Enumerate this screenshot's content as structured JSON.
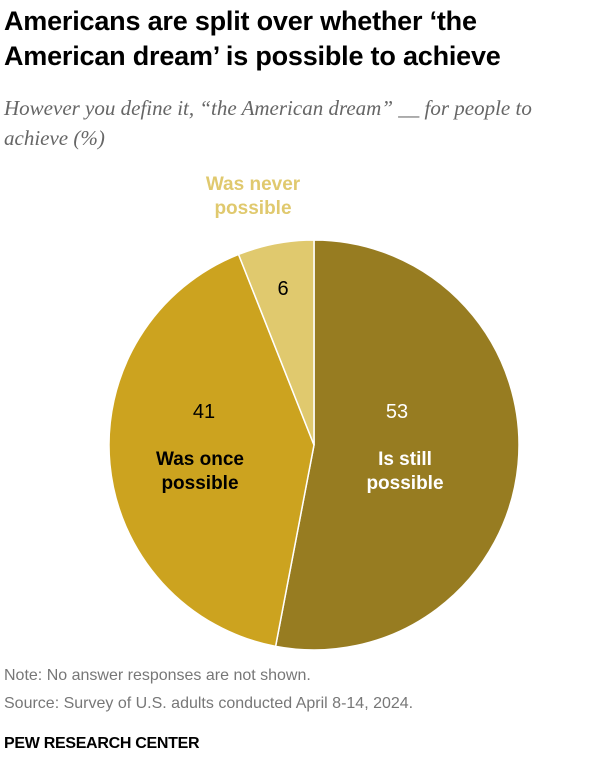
{
  "chart_data": {
    "type": "pie",
    "title": "Americans are split over whether ‘the American dream’ is possible to achieve",
    "subtitle": "However you define it, “the American dream” __ for people to achieve (%)",
    "slices": [
      {
        "label": "Is still possible",
        "value": 53,
        "color": "#977c21",
        "label_color": "#ffffff",
        "value_color": "#ffffff"
      },
      {
        "label": "Was once possible",
        "value": 41,
        "color": "#cca31f",
        "label_color": "#000000",
        "value_color": "#000000"
      },
      {
        "label": "Was never possible",
        "value": 6,
        "color": "#e0c96e",
        "label_color": "#e0c96e",
        "value_color": "#000000"
      }
    ],
    "note": "Note: No answer responses are not shown.",
    "source": "Source: Survey of U.S. adults conducted April 8-14, 2024.",
    "brand": "PEW RESEARCH CENTER"
  }
}
